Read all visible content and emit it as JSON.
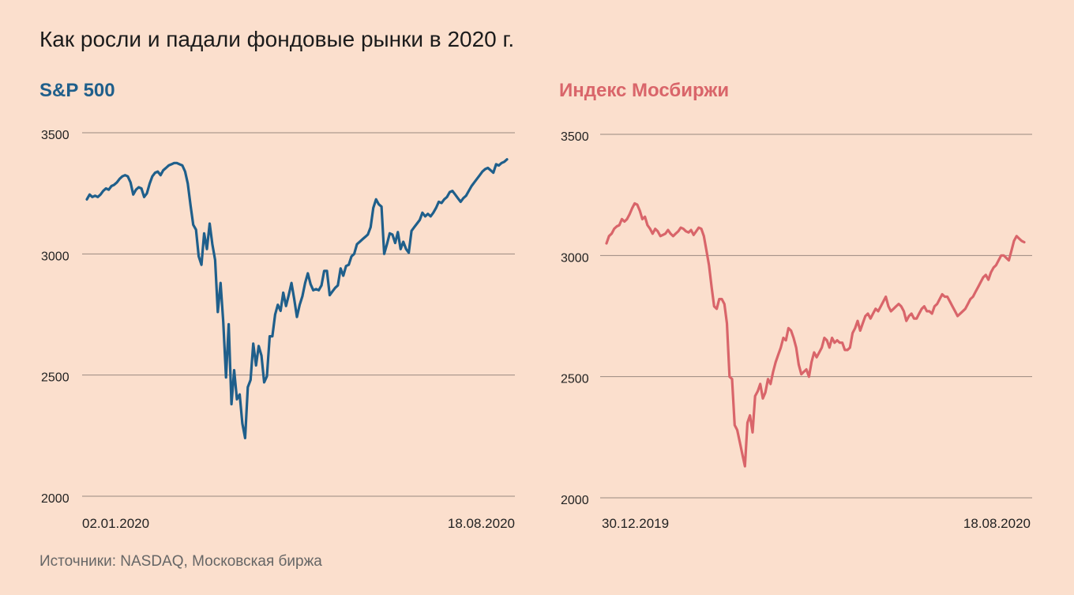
{
  "title": "Как росли и падали фондовые рынки в 2020 г.",
  "source": "Источники: NASDAQ, Московская биржа",
  "colors": {
    "background": "#fbdfcd",
    "sp500": "#1f5f8b",
    "moex": "#d9656a",
    "grid": "#9a8a80"
  },
  "chart_data": [
    {
      "type": "line",
      "title": "S&P 500",
      "color": "#1f5f8b",
      "ylim": [
        2000,
        3500
      ],
      "yticks": [
        3500,
        3000,
        2500,
        2000
      ],
      "x_start_label": "02.01.2020",
      "x_end_label": "18.08.2020",
      "grid": true,
      "values": [
        3225,
        3245,
        3235,
        3240,
        3235,
        3245,
        3260,
        3270,
        3265,
        3280,
        3285,
        3295,
        3310,
        3320,
        3325,
        3320,
        3295,
        3245,
        3265,
        3275,
        3270,
        3235,
        3250,
        3290,
        3320,
        3335,
        3340,
        3325,
        3345,
        3355,
        3365,
        3370,
        3375,
        3375,
        3370,
        3365,
        3340,
        3290,
        3200,
        3120,
        3100,
        2990,
        2955,
        3085,
        3020,
        3125,
        3040,
        2975,
        2760,
        2880,
        2720,
        2490,
        2710,
        2380,
        2520,
        2400,
        2420,
        2300,
        2240,
        2450,
        2480,
        2630,
        2540,
        2620,
        2580,
        2470,
        2495,
        2660,
        2660,
        2750,
        2790,
        2765,
        2840,
        2785,
        2830,
        2880,
        2815,
        2740,
        2790,
        2825,
        2880,
        2920,
        2875,
        2850,
        2855,
        2850,
        2870,
        2930,
        2930,
        2830,
        2845,
        2860,
        2870,
        2940,
        2910,
        2950,
        2955,
        2990,
        3000,
        3040,
        3050,
        3060,
        3070,
        3080,
        3110,
        3190,
        3225,
        3205,
        3195,
        3000,
        3040,
        3085,
        3080,
        3045,
        3090,
        3020,
        3050,
        3020,
        3005,
        3095,
        3110,
        3125,
        3140,
        3170,
        3155,
        3165,
        3155,
        3170,
        3190,
        3215,
        3210,
        3225,
        3235,
        3255,
        3260,
        3245,
        3230,
        3215,
        3230,
        3240,
        3260,
        3280,
        3295,
        3310,
        3325,
        3340,
        3350,
        3355,
        3345,
        3335,
        3370,
        3365,
        3375,
        3380,
        3390
      ]
    },
    {
      "type": "line",
      "title": "Индекс Мосбиржи",
      "color": "#d9656a",
      "ylim": [
        2000,
        3500
      ],
      "yticks": [
        3500,
        3000,
        2500,
        2000
      ],
      "x_start_label": "30.12.2019",
      "x_end_label": "18.08.2020",
      "grid": true,
      "values": [
        3050,
        3080,
        3090,
        3110,
        3120,
        3125,
        3150,
        3140,
        3150,
        3170,
        3195,
        3215,
        3210,
        3185,
        3150,
        3160,
        3125,
        3110,
        3090,
        3110,
        3100,
        3080,
        3085,
        3090,
        3105,
        3090,
        3080,
        3090,
        3100,
        3115,
        3110,
        3100,
        3095,
        3105,
        3085,
        3100,
        3115,
        3110,
        3080,
        3020,
        2960,
        2870,
        2790,
        2780,
        2820,
        2820,
        2800,
        2720,
        2500,
        2490,
        2300,
        2280,
        2230,
        2180,
        2130,
        2310,
        2340,
        2270,
        2420,
        2440,
        2470,
        2410,
        2435,
        2490,
        2470,
        2520,
        2560,
        2590,
        2620,
        2660,
        2650,
        2700,
        2690,
        2660,
        2620,
        2550,
        2510,
        2520,
        2530,
        2500,
        2560,
        2600,
        2580,
        2600,
        2620,
        2660,
        2650,
        2620,
        2660,
        2640,
        2650,
        2640,
        2640,
        2610,
        2610,
        2620,
        2680,
        2700,
        2730,
        2690,
        2720,
        2750,
        2760,
        2740,
        2760,
        2780,
        2770,
        2790,
        2810,
        2830,
        2790,
        2770,
        2780,
        2790,
        2800,
        2790,
        2770,
        2730,
        2750,
        2760,
        2740,
        2740,
        2760,
        2780,
        2790,
        2770,
        2770,
        2760,
        2790,
        2800,
        2820,
        2840,
        2830,
        2830,
        2810,
        2790,
        2770,
        2750,
        2760,
        2770,
        2780,
        2800,
        2820,
        2830,
        2850,
        2870,
        2890,
        2910,
        2920,
        2900,
        2930,
        2950,
        2960,
        2980,
        3000,
        3000,
        2990,
        2980,
        3020,
        3060,
        3080,
        3070,
        3060,
        3055
      ]
    }
  ]
}
